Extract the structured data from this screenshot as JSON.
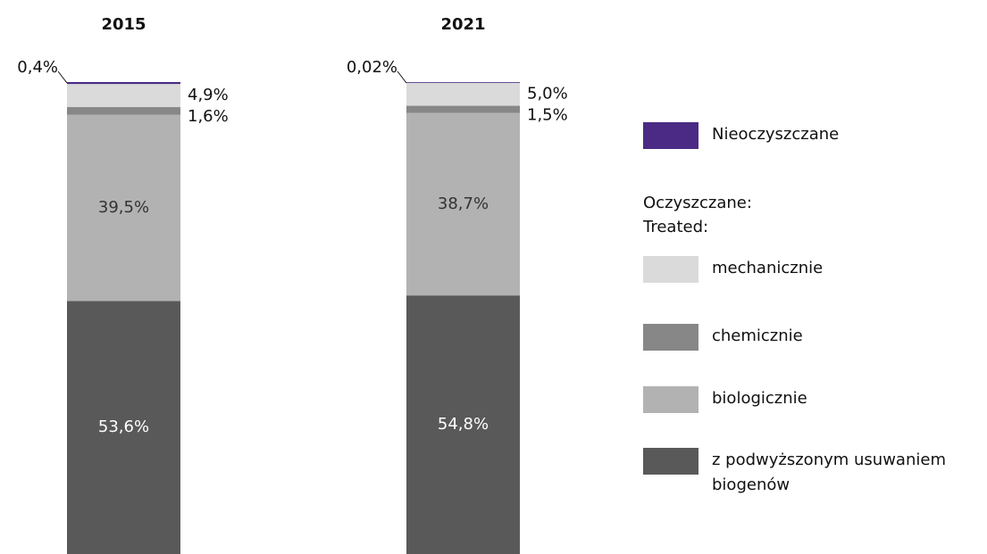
{
  "chart_data": {
    "type": "stacked-bar",
    "categories": [
      "2015",
      "2021"
    ],
    "series": [
      {
        "name": "Nieoczyszczane",
        "color": "#4b2a85",
        "values": [
          0.4,
          0.02
        ],
        "value_labels": [
          "0,4%",
          "0,02%"
        ]
      },
      {
        "name": "mechanicznie",
        "color": "#dadada",
        "values": [
          4.9,
          5.0
        ],
        "value_labels": [
          "4,9%",
          "5,0%"
        ]
      },
      {
        "name": "chemicznie",
        "color": "#878787",
        "values": [
          1.6,
          1.5
        ],
        "value_labels": [
          "1,6%",
          "1,5%"
        ]
      },
      {
        "name": "biologicznie",
        "color": "#b2b2b2",
        "values": [
          39.5,
          38.7
        ],
        "value_labels": [
          "39,5%",
          "38,7%"
        ]
      },
      {
        "name": "z podwyższonym usuwaniem biogenów",
        "color": "#595959",
        "values": [
          53.6,
          54.8
        ],
        "value_labels": [
          "53,6%",
          "54,8%"
        ]
      }
    ],
    "legend_heading": [
      "Oczyszczane:",
      "Treated:"
    ]
  }
}
